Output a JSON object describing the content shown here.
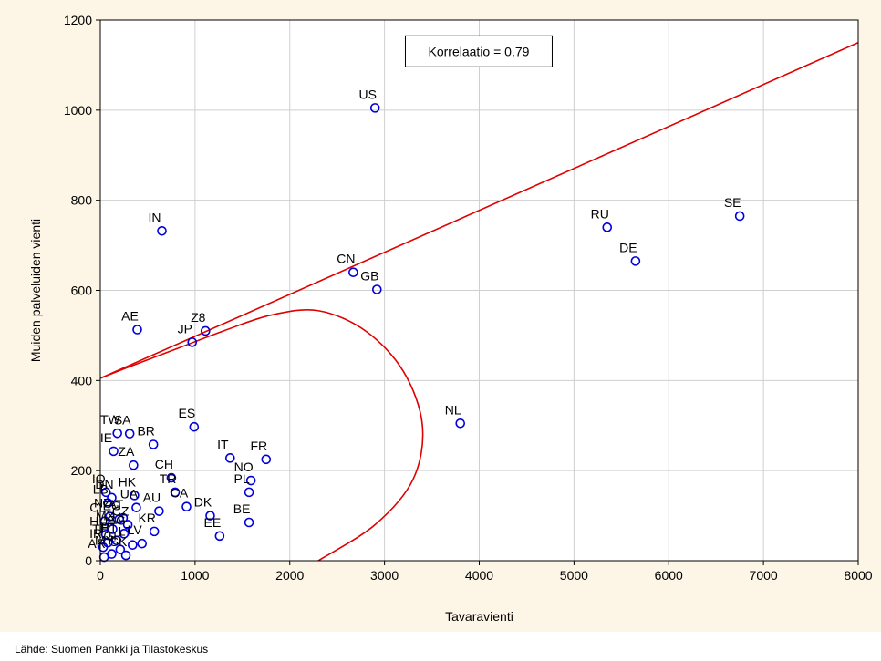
{
  "source_note": "Lähde: Suomen Pankki ja Tilastokeskus",
  "colors": {
    "background": "#fdf5e6",
    "plot_bg": "#ffffff",
    "points": "#0000dd",
    "fit": "#e00000",
    "grid": "#cfcfcf"
  },
  "chart_data": {
    "type": "scatter",
    "title": "",
    "xlabel": "Tavaravienti",
    "ylabel": "Muiden palveluiden vienti",
    "xlim": [
      0,
      8000
    ],
    "ylim": [
      0,
      1200
    ],
    "xticks": [
      0,
      1000,
      2000,
      3000,
      4000,
      5000,
      6000,
      7000,
      8000
    ],
    "yticks": [
      0,
      200,
      400,
      600,
      800,
      1000,
      1200
    ],
    "grid": true,
    "annotation": "Korrelaatio = 0.79",
    "fit_line": {
      "x": [
        0,
        8000
      ],
      "y": [
        405,
        1150
      ]
    },
    "ellipse": {
      "x": [
        2300,
        2900,
        3300,
        3400,
        3200,
        2800,
        2300,
        1800,
        1300,
        800,
        300,
        0
      ],
      "y": [
        0,
        80,
        180,
        300,
        420,
        510,
        555,
        545,
        510,
        470,
        430,
        405
      ]
    },
    "points": [
      {
        "label": "US",
        "x": 2900,
        "y": 1005
      },
      {
        "label": "SE",
        "x": 6750,
        "y": 765
      },
      {
        "label": "RU",
        "x": 5350,
        "y": 740
      },
      {
        "label": "IN",
        "x": 650,
        "y": 732
      },
      {
        "label": "DE",
        "x": 5650,
        "y": 665
      },
      {
        "label": "CN",
        "x": 2670,
        "y": 640
      },
      {
        "label": "GB",
        "x": 2920,
        "y": 602
      },
      {
        "label": "AE",
        "x": 390,
        "y": 513
      },
      {
        "label": "Z8",
        "x": 1110,
        "y": 510
      },
      {
        "label": "JP",
        "x": 970,
        "y": 485
      },
      {
        "label": "NL",
        "x": 3800,
        "y": 305
      },
      {
        "label": "ES",
        "x": 990,
        "y": 297
      },
      {
        "label": "TW",
        "x": 180,
        "y": 283
      },
      {
        "label": "SA",
        "x": 310,
        "y": 282
      },
      {
        "label": "BR",
        "x": 560,
        "y": 258
      },
      {
        "label": "IE",
        "x": 140,
        "y": 243
      },
      {
        "label": "IT",
        "x": 1370,
        "y": 228
      },
      {
        "label": "FR",
        "x": 1750,
        "y": 225
      },
      {
        "label": "ZA",
        "x": 350,
        "y": 212
      },
      {
        "label": "CH",
        "x": 750,
        "y": 184
      },
      {
        "label": "NO",
        "x": 1590,
        "y": 178
      },
      {
        "label": "PL",
        "x": 1570,
        "y": 152
      },
      {
        "label": "TR",
        "x": 790,
        "y": 152
      },
      {
        "label": "HK",
        "x": 360,
        "y": 145
      },
      {
        "label": "CA",
        "x": 910,
        "y": 120
      },
      {
        "label": "AU",
        "x": 620,
        "y": 110
      },
      {
        "label": "UA",
        "x": 380,
        "y": 118
      },
      {
        "label": "DK",
        "x": 1160,
        "y": 100
      },
      {
        "label": "BE",
        "x": 1570,
        "y": 85
      },
      {
        "label": "KR",
        "x": 570,
        "y": 65
      },
      {
        "label": "EE",
        "x": 1260,
        "y": 55
      },
      {
        "label": "LV",
        "x": 440,
        "y": 38
      },
      {
        "label": "LT",
        "x": 340,
        "y": 35
      },
      {
        "label": "IQ",
        "x": 60,
        "y": 152
      },
      {
        "label": "LB",
        "x": 80,
        "y": 128
      },
      {
        "label": "DN",
        "x": 120,
        "y": 140
      },
      {
        "label": "NZ",
        "x": 100,
        "y": 98
      },
      {
        "label": "CL",
        "x": 50,
        "y": 88
      },
      {
        "label": "AT",
        "x": 240,
        "y": 95
      },
      {
        "label": "EG",
        "x": 200,
        "y": 92
      },
      {
        "label": "CZ",
        "x": 290,
        "y": 80
      },
      {
        "label": "MX",
        "x": 130,
        "y": 70
      },
      {
        "label": "HU",
        "x": 60,
        "y": 58
      },
      {
        "label": "SG",
        "x": 250,
        "y": 60
      },
      {
        "label": "PT",
        "x": 170,
        "y": 45
      },
      {
        "label": "TH",
        "x": 80,
        "y": 40
      },
      {
        "label": "IR",
        "x": 30,
        "y": 30
      },
      {
        "label": "GR",
        "x": 210,
        "y": 25
      },
      {
        "label": "SK",
        "x": 270,
        "y": 12
      },
      {
        "label": "MY",
        "x": 120,
        "y": 15
      },
      {
        "label": "AR",
        "x": 40,
        "y": 8
      }
    ]
  }
}
